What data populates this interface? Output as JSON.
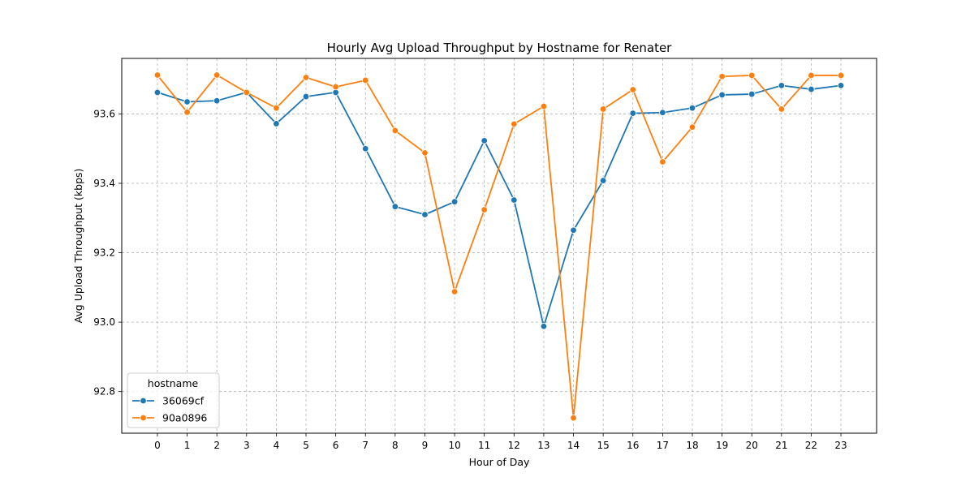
{
  "chart_data": {
    "type": "line",
    "title": "Hourly Avg Upload Throughput by Hostname for Renater",
    "xlabel": "Hour of Day",
    "ylabel": "Avg Upload Throughput (kbps)",
    "x": [
      0,
      1,
      2,
      3,
      4,
      5,
      6,
      7,
      8,
      9,
      10,
      11,
      12,
      13,
      14,
      15,
      16,
      17,
      18,
      19,
      20,
      21,
      22,
      23
    ],
    "x_tick_labels": [
      "0",
      "1",
      "2",
      "3",
      "4",
      "5",
      "6",
      "7",
      "8",
      "9",
      "10",
      "11",
      "12",
      "13",
      "14",
      "15",
      "16",
      "17",
      "18",
      "19",
      "20",
      "21",
      "22",
      "23"
    ],
    "y_ticks": [
      92.8,
      93.0,
      93.2,
      93.4,
      93.6
    ],
    "y_tick_labels": [
      "92.8",
      "93.0",
      "93.2",
      "93.4",
      "93.6"
    ],
    "xlim": [
      -1.2,
      24.2
    ],
    "ylim": [
      92.68,
      93.76
    ],
    "grid": true,
    "legend": {
      "title": "hostname",
      "placement": "lower-left"
    },
    "series": [
      {
        "name": "36069cf",
        "color": "#1f77b4",
        "marker": "circle",
        "values": [
          93.662,
          93.635,
          93.638,
          93.662,
          93.572,
          93.65,
          93.662,
          93.5,
          93.333,
          93.31,
          93.347,
          93.523,
          93.352,
          92.988,
          93.265,
          93.408,
          93.602,
          93.604,
          93.617,
          93.655,
          93.657,
          93.682,
          93.671,
          93.682
        ]
      },
      {
        "name": "90a0896",
        "color": "#ff7f0e",
        "marker": "circle",
        "values": [
          93.712,
          93.605,
          93.712,
          93.662,
          93.617,
          93.705,
          93.678,
          93.697,
          93.552,
          93.488,
          93.088,
          93.324,
          93.571,
          93.622,
          92.724,
          93.614,
          93.67,
          93.462,
          93.562,
          93.708,
          93.711,
          93.614,
          93.711,
          93.711
        ]
      }
    ]
  }
}
